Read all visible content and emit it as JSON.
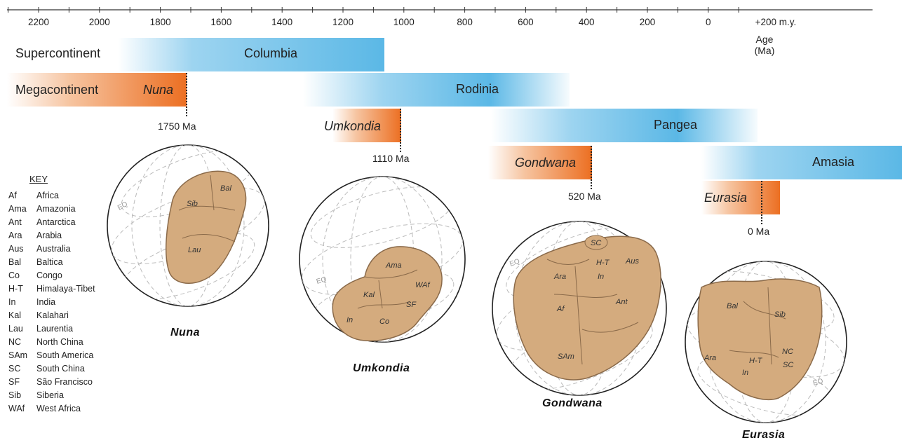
{
  "axis": {
    "ticks": [
      "2200",
      "2000",
      "1800",
      "1600",
      "1400",
      "1200",
      "1000",
      "800",
      "600",
      "400",
      "200",
      "0",
      "+200 m.y."
    ],
    "label_line1": "Age",
    "label_line2": "(Ma)"
  },
  "row_labels": {
    "supercontinent": "Supercontinent",
    "megacontinent": "Megacontinent"
  },
  "supercontinents": [
    {
      "name": "Columbia"
    },
    {
      "name": "Rodinia"
    },
    {
      "name": "Pangea"
    },
    {
      "name": "Amasia"
    }
  ],
  "megacontinents": [
    {
      "name": "Nuna",
      "age_label": "1750 Ma",
      "age_ma": 1750
    },
    {
      "name": "Umkondia",
      "age_label": "1110 Ma",
      "age_ma": 1110
    },
    {
      "name": "Gondwana",
      "age_label": "520 Ma",
      "age_ma": 520
    },
    {
      "name": "Eurasia",
      "age_label": "0 Ma",
      "age_ma": 0
    }
  ],
  "globes": [
    {
      "caption": "Nuna",
      "eq": "EQ",
      "blocks": [
        "Sib",
        "Bal",
        "Lau"
      ]
    },
    {
      "caption": "Umkondia",
      "eq": "EQ",
      "blocks": [
        "Ama",
        "WAf",
        "Kal",
        "SF",
        "In",
        "Co"
      ]
    },
    {
      "caption": "Gondwana",
      "eq": "EQ",
      "blocks": [
        "SC",
        "H-T",
        "In",
        "Aus",
        "Ara",
        "Af",
        "Ant",
        "SAm"
      ]
    },
    {
      "caption": "Eurasia",
      "eq": "EQ",
      "blocks": [
        "Bal",
        "Sib",
        "NC",
        "SC",
        "H-T",
        "In",
        "Ara"
      ]
    }
  ],
  "key": {
    "title": "KEY",
    "items": [
      {
        "abbr": "Af",
        "name": "Africa"
      },
      {
        "abbr": "Ama",
        "name": "Amazonia"
      },
      {
        "abbr": "Ant",
        "name": "Antarctica"
      },
      {
        "abbr": "Ara",
        "name": "Arabia"
      },
      {
        "abbr": "Aus",
        "name": "Australia"
      },
      {
        "abbr": "Bal",
        "name": "Baltica"
      },
      {
        "abbr": "Co",
        "name": "Congo"
      },
      {
        "abbr": "H-T",
        "name": "Himalaya-Tibet"
      },
      {
        "abbr": "In",
        "name": "India"
      },
      {
        "abbr": "Kal",
        "name": "Kalahari"
      },
      {
        "abbr": "Lau",
        "name": "Laurentia"
      },
      {
        "abbr": "NC",
        "name": "North China"
      },
      {
        "abbr": "SAm",
        "name": "South America"
      },
      {
        "abbr": "SC",
        "name": "South China"
      },
      {
        "abbr": "SF",
        "name": "São Francisco"
      },
      {
        "abbr": "Sib",
        "name": "Siberia"
      },
      {
        "abbr": "WAf",
        "name": "West Africa"
      }
    ]
  },
  "colors": {
    "blue_bar": "#5bb8e6",
    "orange_bar": "#ec6f22",
    "continent_fill": "#d4ab7e",
    "continent_stroke": "#8a6a4a"
  }
}
